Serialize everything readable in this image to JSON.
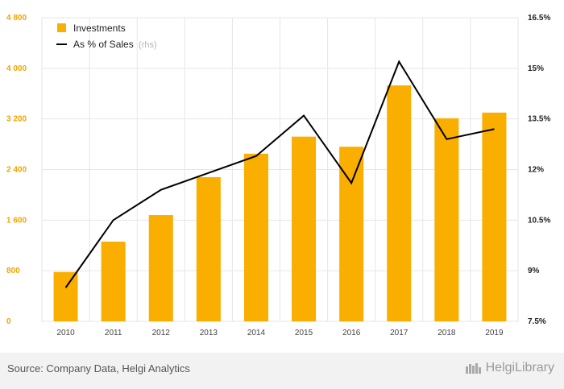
{
  "chart_data": {
    "type": "bar+line",
    "categories": [
      "2010",
      "2011",
      "2012",
      "2013",
      "2014",
      "2015",
      "2016",
      "2017",
      "2018",
      "2019"
    ],
    "series": [
      {
        "name": "Investments",
        "axis": "left",
        "kind": "bar",
        "color": "#f9ae00",
        "values": [
          780,
          1260,
          1680,
          2280,
          2650,
          2920,
          2760,
          3730,
          3210,
          3300
        ]
      },
      {
        "name": "As % of Sales",
        "axis": "right",
        "kind": "line",
        "color": "#000000",
        "values": [
          8.5,
          10.5,
          11.4,
          11.9,
          12.4,
          13.6,
          11.6,
          15.2,
          12.9,
          13.2
        ]
      }
    ],
    "left_axis": {
      "min": 0,
      "max": 4800,
      "ticks": [
        0,
        800,
        1600,
        2400,
        3200,
        4000,
        4800
      ],
      "tick_labels": [
        "0",
        "800",
        "1 600",
        "2 400",
        "3 200",
        "4 000",
        "4 800"
      ]
    },
    "right_axis": {
      "min": 7.5,
      "max": 16.5,
      "ticks": [
        7.5,
        9,
        10.5,
        12,
        13.5,
        15,
        16.5
      ],
      "tick_labels": [
        "7.5%",
        "9%",
        "10.5%",
        "12%",
        "13.5%",
        "15%",
        "16.5%"
      ]
    },
    "legend": {
      "placement": "top-left",
      "items": [
        {
          "label": "Investments",
          "suffix": ""
        },
        {
          "label": "As % of Sales",
          "suffix": "(rhs)"
        }
      ]
    },
    "grid": true
  },
  "footer": {
    "source": "Source: Company Data, Helgi Analytics",
    "brand": "HelgiLibrary"
  }
}
